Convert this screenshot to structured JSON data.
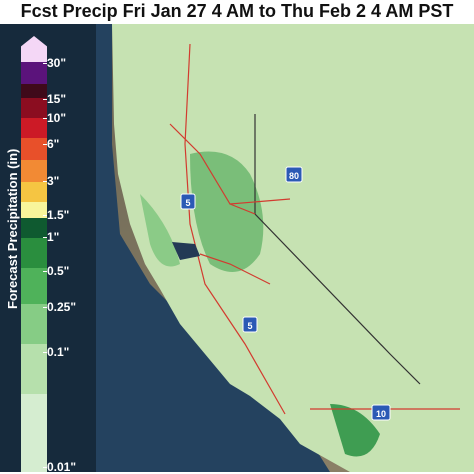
{
  "title": "Fcst Precip Fri Jan 27 4 AM to Thu Feb 2 4 AM PST",
  "legend": {
    "label": "Forecast Precipitation (in)",
    "ticks": [
      "30\"",
      "15\"",
      "10\"",
      "6\"",
      "3\"",
      "1.5\"",
      "1\"",
      "0.5\"",
      "0.25\"",
      "0.1\"",
      "0.01\""
    ],
    "colors": [
      "#f4d7f6",
      "#5b137b",
      "#3f0a1a",
      "#8b0d20",
      "#cc1a26",
      "#e8502a",
      "#f28a34",
      "#f5c542",
      "#f8f59b",
      "#0f5a30",
      "#2a8e3e",
      "#4fb25a",
      "#86cc85",
      "#b6e0ac",
      "#d5edd0"
    ]
  },
  "highways": [
    "5",
    "80",
    "5",
    "10"
  ]
}
